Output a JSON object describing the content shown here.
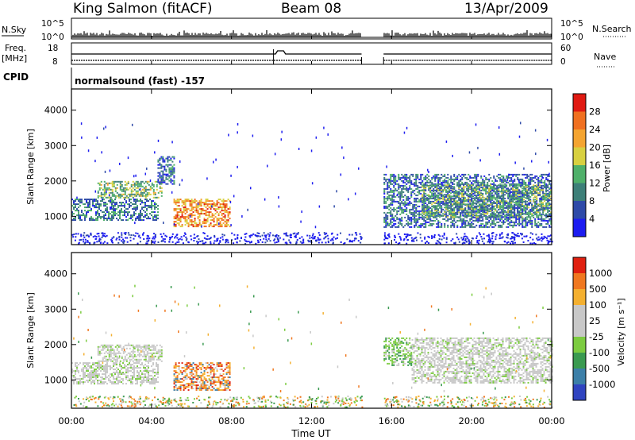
{
  "header": {
    "station": "King Salmon (fitACF)",
    "beam": "Beam 08",
    "date": "13/Apr/2009"
  },
  "sky_panel": {
    "left_label": "N.Sky",
    "right_label": "N.Search",
    "tick_top": "10^5",
    "tick_bottom": "10^0"
  },
  "freq_panel": {
    "left_label_1": "Freq.",
    "left_label_2": "[MHz]",
    "left_ticks": [
      "18",
      "8"
    ],
    "right_label": "Nave",
    "right_ticks": [
      "60",
      "0"
    ]
  },
  "cpid": {
    "label": "CPID",
    "text": "normalsound (fast) -157"
  },
  "chart_data": [
    {
      "type": "heatmap",
      "name": "power",
      "ylabel": "Slant Range [km]",
      "ylim": [
        200,
        4600
      ],
      "yticks": [
        1000,
        2000,
        3000,
        4000
      ],
      "xlim": [
        0,
        24
      ],
      "data_gap_ut": [
        14.5,
        15.6
      ],
      "colorbar": {
        "label": "Power [dB]",
        "range": [
          0,
          32
        ],
        "ticks": [
          4,
          8,
          12,
          16,
          20,
          24,
          28
        ],
        "colors": [
          "#1c1cf0",
          "#2e4aa8",
          "#3d7f78",
          "#4fb06a",
          "#d8d040",
          "#f4a430",
          "#f07020",
          "#e01a12"
        ]
      },
      "regions": [
        {
          "t0": 0.0,
          "t1": 4.3,
          "r0": 900,
          "r1": 1500,
          "level": 0.28
        },
        {
          "t0": 1.3,
          "t1": 4.5,
          "r0": 1550,
          "r1": 2000,
          "level": 0.45
        },
        {
          "t0": 4.3,
          "t1": 5.1,
          "r0": 1900,
          "r1": 2700,
          "level": 0.25
        },
        {
          "t0": 5.1,
          "t1": 7.9,
          "r0": 700,
          "r1": 1500,
          "level": 0.72
        },
        {
          "t0": 15.6,
          "t1": 24.0,
          "r0": 700,
          "r1": 2200,
          "level": 0.25
        },
        {
          "t0": 17.5,
          "t1": 24.0,
          "r0": 1000,
          "r1": 1900,
          "level": 0.38
        }
      ]
    },
    {
      "type": "heatmap",
      "name": "velocity",
      "ylabel": "Slant Range [km]",
      "ylim": [
        200,
        4600
      ],
      "yticks": [
        1000,
        2000,
        3000,
        4000
      ],
      "xlim": [
        0,
        24
      ],
      "xticks": [
        "00:00",
        "04:00",
        "08:00",
        "12:00",
        "16:00",
        "20:00",
        "00:00"
      ],
      "xlabel": "Time UT",
      "colorbar": {
        "label": "Velocity [m s⁻¹]",
        "ticks": [
          "1000",
          "500",
          "100",
          "25",
          "-25",
          "-100",
          "-500",
          "-1000"
        ],
        "colors": [
          "#3044c0",
          "#3c7fa8",
          "#3a9a50",
          "#7ccc40",
          "#c8c8c8",
          "#c8c8c8",
          "#f4b030",
          "#f07820",
          "#e02010"
        ]
      },
      "regions": [
        {
          "t0": 0.0,
          "t1": 4.3,
          "r0": 900,
          "r1": 1500,
          "level": "grey"
        },
        {
          "t0": 1.3,
          "t1": 4.5,
          "r0": 1550,
          "r1": 2000,
          "level": "grey"
        },
        {
          "t0": 5.1,
          "t1": 7.9,
          "r0": 700,
          "r1": 1500,
          "level": "orange"
        },
        {
          "t0": 15.6,
          "t1": 17.0,
          "r0": 1400,
          "r1": 2200,
          "level": "green"
        },
        {
          "t0": 17.0,
          "t1": 24.0,
          "r0": 900,
          "r1": 2200,
          "level": "grey"
        }
      ]
    }
  ]
}
